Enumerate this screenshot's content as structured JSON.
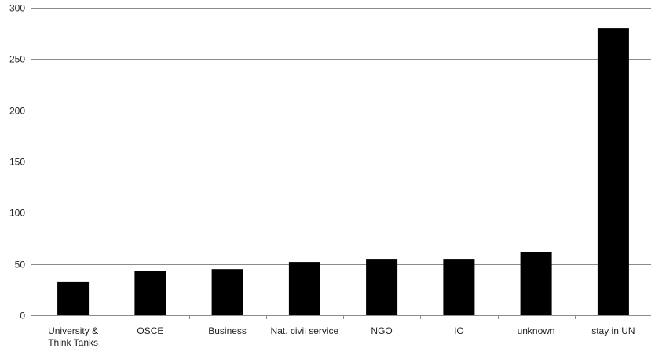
{
  "chart_data": {
    "type": "bar",
    "title": "",
    "xlabel": "",
    "ylabel": "",
    "categories": [
      "University & Think Tanks",
      "OSCE",
      "Business",
      "Nat. civil service",
      "NGO",
      "IO",
      "unknown",
      "stay in UN"
    ],
    "category_lines": [
      [
        "University &",
        "Think Tanks"
      ],
      [
        "OSCE"
      ],
      [
        "Business"
      ],
      [
        "Nat. civil service"
      ],
      [
        "NGO"
      ],
      [
        "IO"
      ],
      [
        "unknown"
      ],
      [
        "stay in UN"
      ]
    ],
    "values": [
      33,
      43,
      45,
      52,
      55,
      55,
      62,
      280
    ],
    "ylim": [
      0,
      300
    ],
    "yticks": [
      0,
      50,
      100,
      150,
      200,
      250,
      300
    ],
    "grid": true,
    "legend": "none",
    "colors": {
      "bar": "#000000",
      "grid": "#8c8c8c",
      "axis": "#8c8c8c"
    }
  }
}
